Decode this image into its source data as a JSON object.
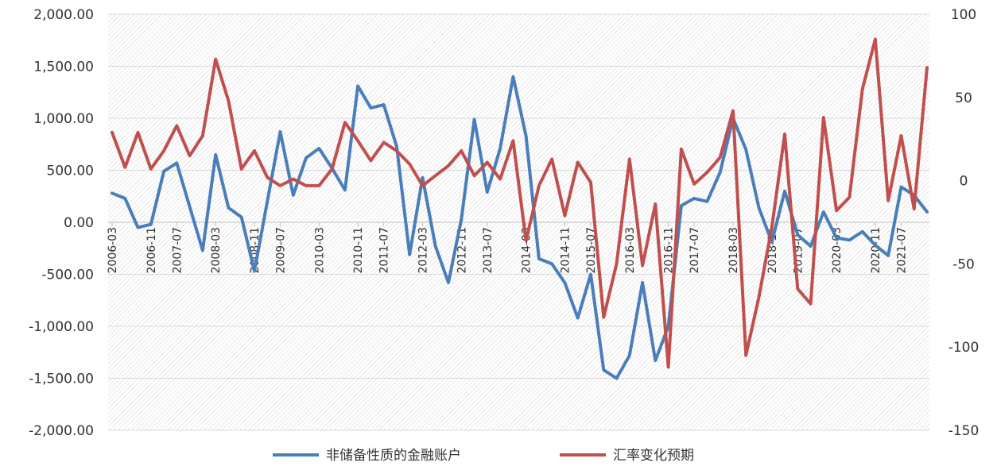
{
  "chart_data": {
    "type": "line",
    "x_labels": [
      "2006-03",
      "2006-11",
      "2007-07",
      "2008-03",
      "2008-11",
      "2009-07",
      "2010-03",
      "2010-11",
      "2011-07",
      "2012-03",
      "2012-11",
      "2013-07",
      "2014-03",
      "2014-11",
      "2015-07",
      "2016-03",
      "2016-11",
      "2017-07",
      "2018-03",
      "2018-11",
      "2019-07",
      "2020-03",
      "2020-11",
      "2021-07"
    ],
    "y_left_ticks": [
      "2,000.00",
      "1,500.00",
      "1,000.00",
      "500.00",
      "0.00",
      "-500.00",
      "-1,000.00",
      "-1,500.00",
      "-2,000.00"
    ],
    "y_right_ticks": [
      "100",
      "50",
      "0",
      "-50",
      "-100",
      "-150"
    ],
    "ylim_left": [
      -2000,
      2000
    ],
    "ylim_right": [
      -150,
      100
    ],
    "series": [
      {
        "name": "非储备性质的金融账户",
        "axis": "left",
        "color": "#4a7ebb",
        "values": [
          280,
          230,
          -50,
          -20,
          490,
          570,
          150,
          -270,
          650,
          140,
          50,
          -470,
          200,
          870,
          260,
          620,
          710,
          520,
          310,
          1310,
          1100,
          1130,
          730,
          -310,
          430,
          -230,
          -580,
          30,
          990,
          290,
          710,
          1400,
          830,
          -350,
          -400,
          -580,
          -920,
          -500,
          -1420,
          -1500,
          -1280,
          -580,
          -1330,
          -1000,
          160,
          230,
          200,
          480,
          1000,
          700,
          140,
          -190,
          300,
          -120,
          -230,
          100,
          -150,
          -170,
          -90,
          -220,
          -320,
          340,
          260,
          100
        ]
      },
      {
        "name": "汇率变化预期",
        "axis": "right",
        "color": "#c0504d",
        "values": [
          29,
          8,
          29,
          7,
          18,
          33,
          15,
          27,
          73,
          48,
          7,
          18,
          2,
          -3,
          1,
          -3,
          -3,
          7,
          35,
          24,
          12,
          23,
          18,
          10,
          -3,
          3,
          9,
          18,
          3,
          11,
          1,
          24,
          -36,
          -3,
          13,
          -21,
          11,
          -1,
          -82,
          -50,
          13,
          -51,
          -14,
          -112,
          19,
          -2,
          5,
          14,
          42,
          -105,
          -70,
          -28,
          28,
          -65,
          -74,
          38,
          -18,
          -10,
          55,
          85,
          -12,
          27,
          -17,
          68
        ]
      }
    ],
    "legend_position": "bottom",
    "grid": true
  }
}
